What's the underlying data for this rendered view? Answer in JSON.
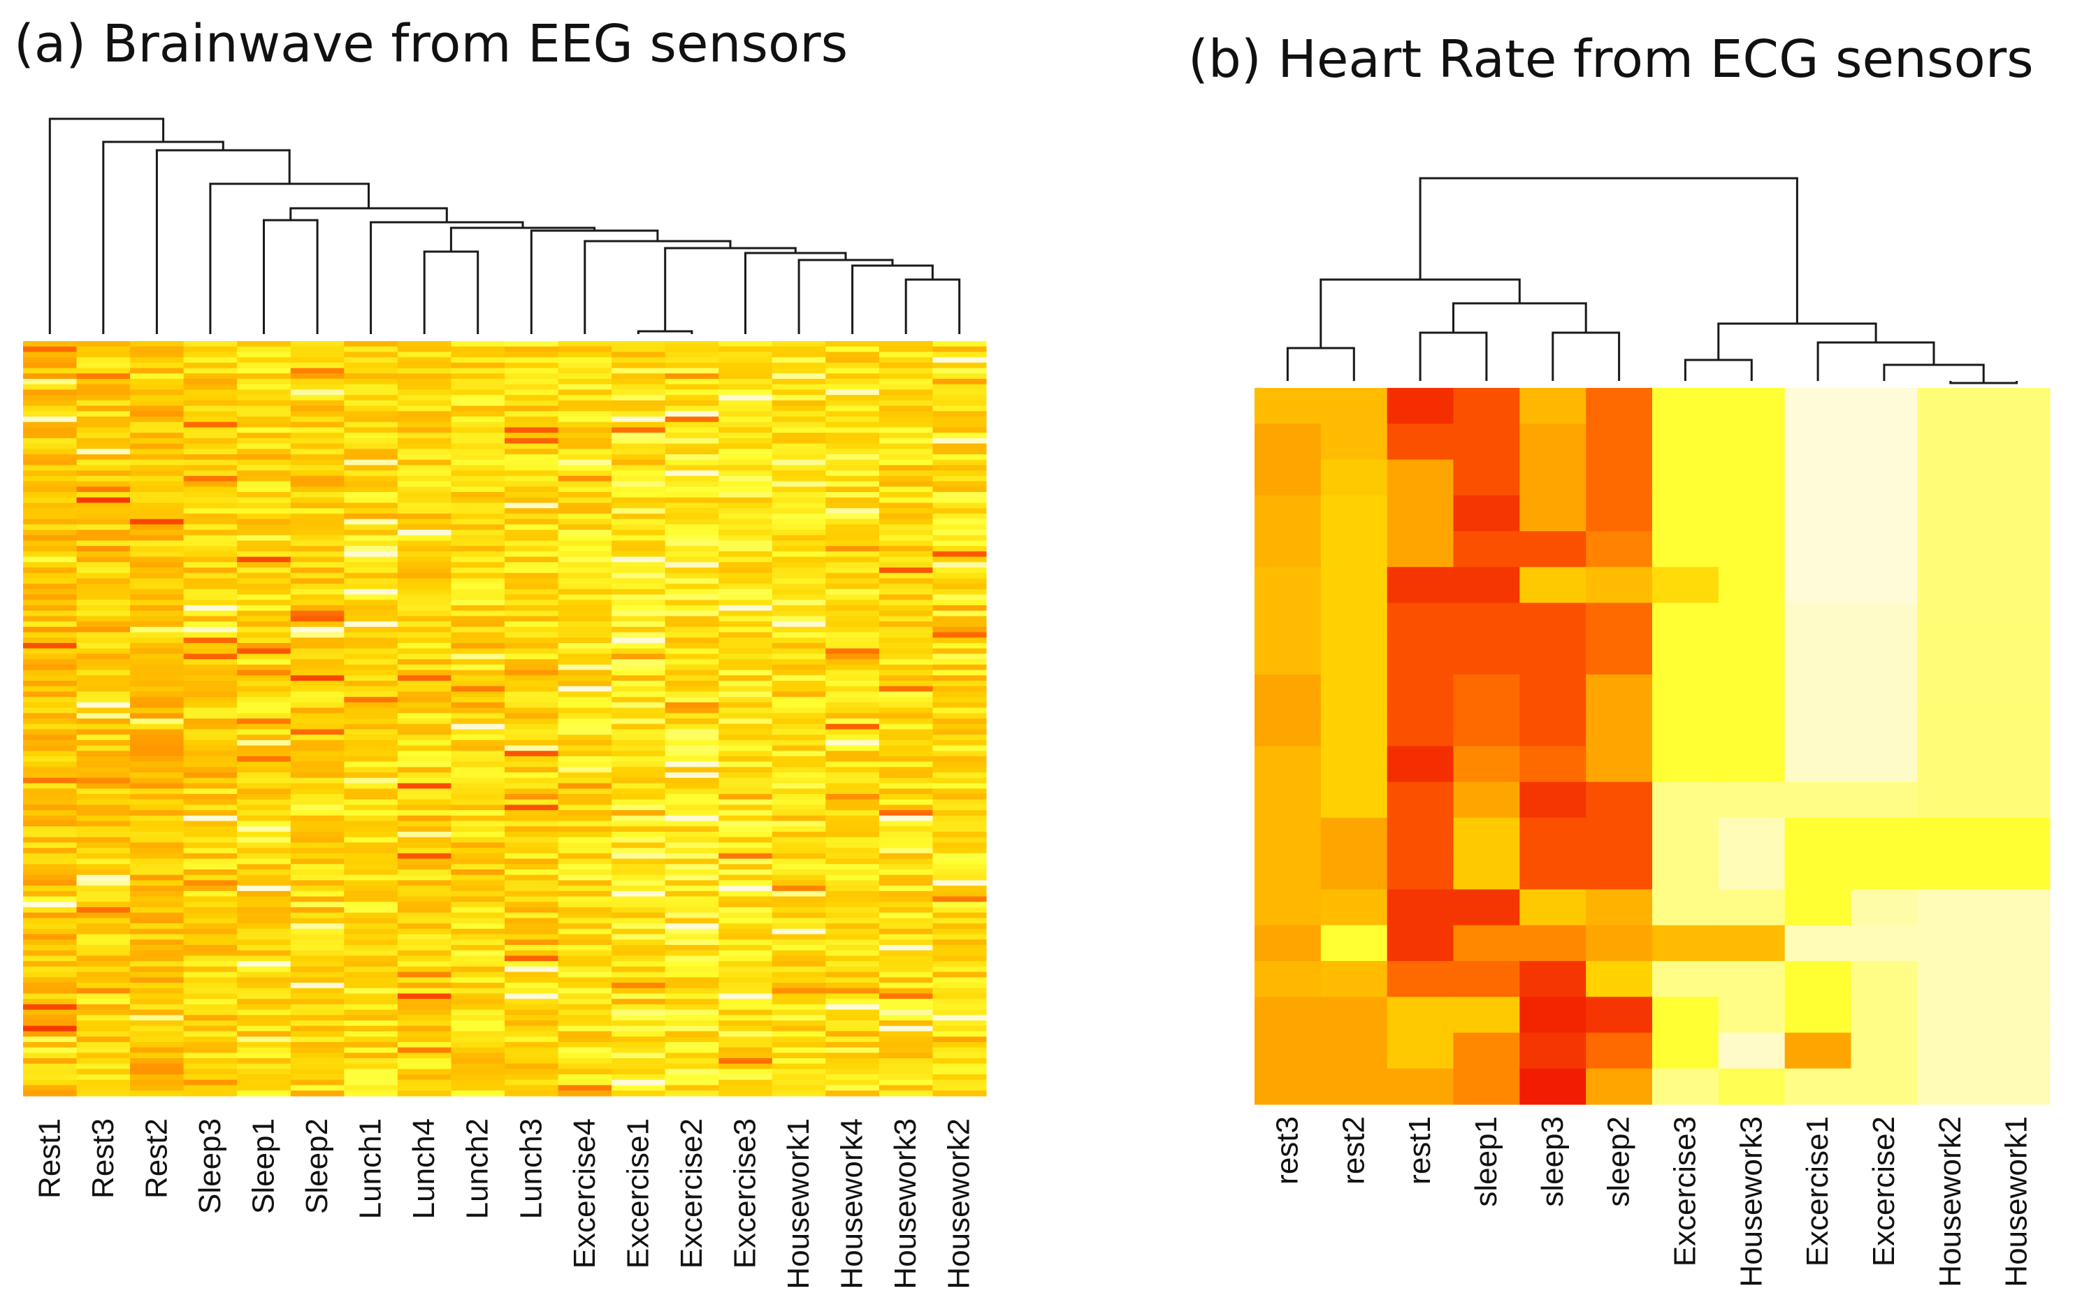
{
  "colors": {
    "scale": [
      "#f01400",
      "#ff6a00",
      "#ffa500",
      "#ffd200",
      "#ffff33",
      "#fffbd8"
    ],
    "scale_meaning": "red = high, pale yellow = low"
  },
  "chart_data": [
    {
      "type": "heatmap",
      "title": "(a) Brainwave from EEG sensors",
      "xlabel": "",
      "ylabel": "",
      "columns": [
        "Rest1",
        "Rest3",
        "Rest2",
        "Sleep3",
        "Sleep1",
        "Sleep2",
        "Lunch1",
        "Lunch4",
        "Lunch2",
        "Lunch3",
        "Excercise4",
        "Excercise1",
        "Excercise2",
        "Excercise3",
        "Housework1",
        "Housework4",
        "Housework3",
        "Housework2"
      ],
      "row_count": 140,
      "values_note": "dense per-row values are not legible; column tendencies estimated on a 0 (pale) to 5 (red) scale",
      "column_tendency": [
        2.3,
        2.1,
        2.4,
        2.0,
        1.9,
        2.0,
        1.8,
        1.9,
        1.8,
        1.9,
        1.7,
        1.5,
        1.5,
        1.6,
        1.7,
        1.7,
        1.8,
        1.7
      ],
      "dendrogram_order": [
        "Rest1",
        "Rest3",
        "Rest2",
        "Sleep3",
        "Sleep1",
        "Sleep2",
        "Lunch1",
        "Lunch4",
        "Lunch2",
        "Lunch3",
        "Excercise4",
        "Excercise1",
        "Excercise2",
        "Excercise3",
        "Housework1",
        "Housework4",
        "Housework3",
        "Housework2"
      ]
    },
    {
      "type": "heatmap",
      "title": "(b) Heart Rate from ECG sensors",
      "xlabel": "",
      "ylabel": "",
      "columns": [
        "rest3",
        "rest2",
        "rest1",
        "sleep1",
        "sleep3",
        "sleep2",
        "Excercise3",
        "Housework3",
        "Excercise1",
        "Excercise2",
        "Housework2",
        "Housework1"
      ],
      "value_scale": "0 = pale cream (low) ... 5 = red (high)",
      "rows": [
        [
          2.5,
          2.5,
          4.7,
          4.3,
          2.6,
          4.0,
          1.0,
          1.0,
          0.0,
          0.0,
          0.6,
          0.6
        ],
        [
          3.0,
          2.5,
          4.3,
          4.3,
          3.0,
          4.0,
          1.0,
          1.0,
          0.0,
          0.0,
          0.6,
          0.6
        ],
        [
          3.0,
          2.2,
          3.0,
          4.3,
          3.0,
          4.0,
          1.0,
          1.0,
          0.0,
          0.0,
          0.6,
          0.6
        ],
        [
          2.7,
          2.0,
          3.0,
          4.6,
          3.0,
          4.0,
          1.0,
          1.0,
          0.0,
          0.0,
          0.6,
          0.6
        ],
        [
          2.7,
          2.0,
          3.0,
          4.3,
          4.3,
          3.6,
          1.0,
          1.0,
          0.0,
          0.0,
          0.6,
          0.6
        ],
        [
          2.5,
          2.0,
          4.6,
          4.6,
          2.2,
          2.5,
          1.8,
          1.0,
          0.0,
          0.0,
          0.6,
          0.6
        ],
        [
          2.5,
          2.0,
          4.3,
          4.3,
          4.3,
          4.0,
          1.0,
          1.0,
          0.1,
          0.1,
          0.6,
          0.6
        ],
        [
          2.5,
          2.0,
          4.3,
          4.3,
          4.3,
          4.0,
          1.0,
          1.0,
          0.1,
          0.1,
          0.6,
          0.6
        ],
        [
          3.0,
          2.0,
          4.3,
          4.0,
          4.3,
          3.0,
          1.0,
          1.0,
          0.1,
          0.1,
          0.6,
          0.6
        ],
        [
          3.0,
          2.0,
          4.3,
          4.0,
          4.3,
          3.0,
          1.0,
          1.0,
          0.1,
          0.1,
          0.6,
          0.6
        ],
        [
          2.6,
          2.0,
          4.7,
          3.5,
          4.0,
          3.0,
          1.0,
          1.0,
          0.1,
          0.1,
          0.6,
          0.6
        ],
        [
          2.6,
          2.0,
          4.3,
          3.0,
          4.6,
          4.3,
          0.5,
          0.5,
          0.5,
          0.5,
          0.6,
          0.6
        ],
        [
          2.6,
          3.0,
          4.3,
          2.2,
          4.3,
          4.3,
          0.5,
          0.2,
          1.0,
          1.0,
          1.0,
          1.0
        ],
        [
          2.6,
          3.0,
          4.3,
          2.2,
          4.3,
          4.3,
          0.5,
          0.2,
          1.0,
          1.0,
          1.0,
          1.0
        ],
        [
          2.6,
          2.5,
          4.6,
          4.6,
          2.2,
          2.7,
          0.5,
          0.5,
          1.0,
          0.3,
          0.2,
          0.2
        ],
        [
          3.0,
          1.0,
          4.6,
          3.5,
          3.5,
          3.0,
          2.5,
          2.5,
          0.2,
          0.2,
          0.2,
          0.2
        ],
        [
          2.6,
          2.5,
          4.0,
          4.0,
          4.6,
          2.0,
          0.5,
          0.5,
          1.0,
          0.5,
          0.2,
          0.2
        ],
        [
          3.0,
          3.0,
          2.2,
          2.2,
          4.8,
          4.6,
          1.0,
          0.5,
          1.0,
          0.5,
          0.2,
          0.2
        ],
        [
          3.0,
          3.0,
          2.2,
          3.5,
          4.6,
          4.0,
          1.0,
          0.1,
          3.0,
          0.5,
          0.2,
          0.2
        ],
        [
          3.0,
          3.0,
          3.0,
          3.5,
          4.9,
          3.0,
          0.5,
          0.8,
          0.5,
          0.5,
          0.2,
          0.2
        ]
      ],
      "dendrogram_order": [
        "rest3",
        "rest2",
        "rest1",
        "sleep1",
        "sleep3",
        "sleep2",
        "Excercise3",
        "Housework3",
        "Excercise1",
        "Excercise2",
        "Housework2",
        "Housework1"
      ]
    }
  ]
}
